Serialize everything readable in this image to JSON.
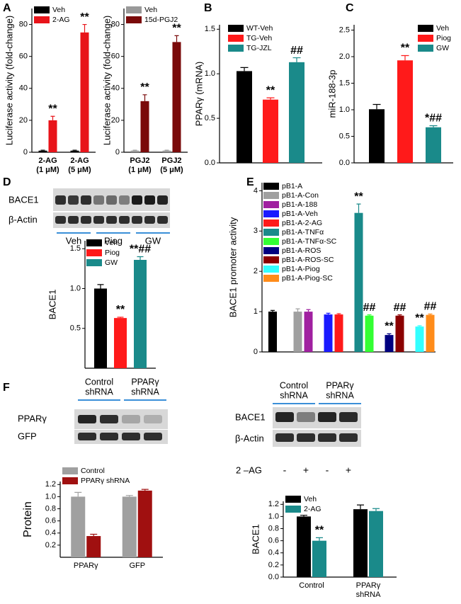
{
  "chart_data": [
    {
      "type": "bar",
      "panel": "A",
      "y_label": "Luciferase activity (fold-change)",
      "categories": [
        [
          "2-AG",
          "(1 μM)"
        ],
        [
          "2-AG",
          "(5 μM)"
        ]
      ],
      "series": [
        {
          "name": "Veh",
          "color": "#000000",
          "values": [
            1,
            1
          ],
          "errors": [
            0.3,
            0.3
          ],
          "annotations": [
            null,
            null
          ]
        },
        {
          "name": "2-AG",
          "color": "#e8141a",
          "values": [
            20,
            75
          ],
          "errors": [
            2.5,
            5
          ],
          "annotations": [
            "**",
            "**"
          ]
        }
      ],
      "ylim": [
        0,
        90
      ],
      "yticks": [
        0,
        20,
        40,
        60,
        80
      ]
    },
    {
      "type": "bar",
      "y_label": "Luciferase activity (fold-change)",
      "categories": [
        [
          "PGJ2",
          "(1 μM)"
        ],
        [
          "PGJ2",
          "(5 μM)"
        ]
      ],
      "series": [
        {
          "name": "Veh",
          "color": "#999999",
          "values": [
            1,
            1
          ],
          "errors": [
            0.3,
            0.3
          ],
          "annotations": [
            null,
            null
          ]
        },
        {
          "name": "15d-PGJ2",
          "color": "#7a0a0a",
          "values": [
            32,
            69
          ],
          "errors": [
            4,
            4
          ],
          "annotations": [
            "**",
            "**"
          ]
        }
      ],
      "ylim": [
        0,
        90
      ],
      "yticks": [
        0,
        20,
        40,
        60,
        80
      ]
    },
    {
      "type": "bar",
      "panel": "B",
      "y_label": "PPARγ (mRNA)",
      "series": [
        {
          "name": "WT-Veh",
          "color": "#000000",
          "values": [
            1.03
          ],
          "errors": [
            0.04
          ],
          "annotations": [
            null
          ]
        },
        {
          "name": "TG-Veh",
          "color": "#ff1a1a",
          "values": [
            0.71
          ],
          "errors": [
            0.02
          ],
          "annotations": [
            "**"
          ]
        },
        {
          "name": "TG-JZL",
          "color": "#1a8a8a",
          "values": [
            1.13
          ],
          "errors": [
            0.05
          ],
          "annotations": [
            "##"
          ]
        }
      ],
      "ylim": [
        0,
        1.55
      ],
      "yticks": [
        {
          "value": 0,
          "label": "0.0"
        },
        {
          "value": 0.5,
          "label": "0.5"
        },
        {
          "value": 1,
          "label": "1.0"
        },
        {
          "value": 1.5,
          "label": "1.5"
        }
      ]
    },
    {
      "type": "bar",
      "panel": "C",
      "y_label": "miR-188-3p",
      "series": [
        {
          "name": "Veh",
          "color": "#000000",
          "values": [
            1.01
          ],
          "errors": [
            0.09
          ],
          "annotations": [
            null
          ]
        },
        {
          "name": "Piog",
          "color": "#ff1a1a",
          "values": [
            1.93
          ],
          "errors": [
            0.09
          ],
          "annotations": [
            "**"
          ]
        },
        {
          "name": "GW",
          "color": "#1a8a8a",
          "values": [
            0.67
          ],
          "errors": [
            0.03
          ],
          "annotations": [
            "*##"
          ]
        }
      ],
      "ylim": [
        0,
        2.6
      ],
      "yticks": [
        {
          "value": 0,
          "label": "0.0"
        },
        {
          "value": 0.5,
          "label": "0.5"
        },
        {
          "value": 1,
          "label": "1.0"
        },
        {
          "value": 1.5,
          "label": "1.5"
        },
        {
          "value": 2,
          "label": "2.0"
        },
        {
          "value": 2.5,
          "label": "2.5"
        }
      ]
    },
    {
      "type": "bar",
      "panel": "D",
      "y_label": "BACE1",
      "series": [
        {
          "name": "Veh",
          "color": "#000000",
          "values": [
            1.0
          ],
          "errors": [
            0.05
          ],
          "annotations": [
            null
          ]
        },
        {
          "name": "Piog",
          "color": "#ff1a1a",
          "values": [
            0.63
          ],
          "errors": [
            0.01
          ],
          "annotations": [
            "**"
          ]
        },
        {
          "name": "GW",
          "color": "#1a8a8a",
          "values": [
            1.36
          ],
          "errors": [
            0.04
          ],
          "annotations": [
            "**##"
          ]
        }
      ],
      "ylim": [
        0,
        1.6
      ],
      "yticks": [
        {
          "value": 0.5,
          "label": "0.5"
        },
        {
          "value": 1,
          "label": "1.0"
        },
        {
          "value": 1.5,
          "label": "1.5"
        }
      ]
    },
    {
      "type": "bar",
      "panel": "E",
      "y_label": "BACE1 promoter activity",
      "series": [
        {
          "name": "pB1-A",
          "color": "#000000",
          "values": [
            1.0
          ],
          "errors": [
            0.03
          ],
          "annotations": [
            null
          ]
        },
        {
          "name": "pB1-A-Con",
          "color": "#a0a0a0",
          "values": [
            1.0
          ],
          "errors": [
            0.07
          ],
          "annotations": [
            null
          ]
        },
        {
          "name": "pB1-A-188",
          "color": "#a020a0",
          "values": [
            1.0
          ],
          "errors": [
            0.05
          ],
          "annotations": [
            null
          ]
        },
        {
          "name": "pB1-A-Veh",
          "color": "#1a1aff",
          "values": [
            0.93
          ],
          "errors": [
            0.03
          ],
          "annotations": [
            null
          ]
        },
        {
          "name": "pB1-A-2-AG",
          "color": "#ff1a1a",
          "values": [
            0.93
          ],
          "errors": [
            0.02
          ],
          "annotations": [
            null
          ]
        },
        {
          "name": "pB1-A-TNFα",
          "color": "#1a8a8a",
          "values": [
            3.45
          ],
          "errors": [
            0.22
          ],
          "annotations": [
            "**"
          ]
        },
        {
          "name": "pB1-A-TNFα-SC",
          "color": "#33ff33",
          "values": [
            0.9
          ],
          "errors": [
            0.02
          ],
          "annotations": [
            "##"
          ]
        },
        {
          "name": "pB1-A-ROS",
          "color": "#000080",
          "values": [
            0.42
          ],
          "errors": [
            0.03
          ],
          "annotations": [
            "**"
          ]
        },
        {
          "name": "pB1-A-ROS-SC",
          "color": "#8b0000",
          "values": [
            0.9
          ],
          "errors": [
            0.02
          ],
          "annotations": [
            "##"
          ]
        },
        {
          "name": "pB1-A-Piog",
          "color": "#33ffff",
          "values": [
            0.63
          ],
          "errors": [
            0.02
          ],
          "annotations": [
            "**"
          ]
        },
        {
          "name": "pB1-A-Piog-SC",
          "color": "#ff8c1a",
          "values": [
            0.92
          ],
          "errors": [
            0.02
          ],
          "annotations": [
            "##"
          ]
        }
      ],
      "ylim": [
        0,
        4.2
      ],
      "yticks": [
        0,
        1,
        2,
        3,
        4
      ]
    },
    {
      "type": "bar",
      "y_label": "Protein",
      "categories": [
        [
          "PPARγ"
        ],
        [
          "GFP"
        ]
      ],
      "series": [
        {
          "name": "Control",
          "color": "#a0a0a0",
          "values": [
            1.0,
            1.0
          ],
          "errors": [
            0.07,
            0.02
          ],
          "annotations": [
            null,
            null
          ]
        },
        {
          "name": "PPARγ shRNA",
          "color": "#a01010",
          "values": [
            0.35,
            1.1
          ],
          "errors": [
            0.03,
            0.02
          ],
          "annotations": [
            null,
            null
          ]
        }
      ],
      "ylim": [
        0,
        1.25
      ],
      "yticks": [
        {
          "value": 0.2,
          "label": "0.2"
        },
        {
          "value": 0.4,
          "label": "0.4"
        },
        {
          "value": 0.6,
          "label": "0.6"
        },
        {
          "value": 0.8,
          "label": "0.8"
        },
        {
          "value": 1,
          "label": "1.0"
        },
        {
          "value": 1.2,
          "label": "1.2"
        }
      ]
    },
    {
      "type": "bar",
      "y_label": "BACE1",
      "categories": [
        [
          "Control"
        ],
        [
          "PPARγ",
          "shRNA"
        ]
      ],
      "series": [
        {
          "name": "Veh",
          "color": "#000000",
          "values": [
            1.0,
            1.12
          ],
          "errors": [
            0.02,
            0.07
          ],
          "annotations": [
            null,
            null
          ]
        },
        {
          "name": "2-AG",
          "color": "#1a8a8a",
          "values": [
            0.6,
            1.09
          ],
          "errors": [
            0.05,
            0.04
          ],
          "annotations": [
            "**",
            null
          ]
        }
      ],
      "ylim": [
        0,
        1.25
      ],
      "yticks": [
        {
          "value": 0,
          "label": "0.0"
        },
        {
          "value": 0.2,
          "label": "0.2"
        },
        {
          "value": 0.4,
          "label": "0.4"
        },
        {
          "value": 0.6,
          "label": "0.6"
        },
        {
          "value": 0.8,
          "label": "0.8"
        },
        {
          "value": 1,
          "label": "1.0"
        },
        {
          "value": 1.2,
          "label": "1.2"
        }
      ]
    }
  ],
  "blots": [
    {
      "rows": [
        "BACE1",
        "β-Actin"
      ],
      "groups": [
        "Veh",
        "Piog",
        "GW"
      ]
    },
    {
      "panel": "F",
      "headers": [
        [
          "Control",
          "shRNA"
        ],
        [
          "PPARγ",
          "shRNA"
        ]
      ],
      "rows": [
        "PPARγ",
        "GFP"
      ]
    },
    {
      "headers": [
        [
          "Control",
          "shRNA"
        ],
        [
          "PPARγ",
          "shRNA"
        ]
      ],
      "rows": [
        "BACE1",
        "β-Actin"
      ],
      "treatment": "2 –AG",
      "signs": [
        "-",
        "+",
        "-",
        "+"
      ]
    }
  ]
}
